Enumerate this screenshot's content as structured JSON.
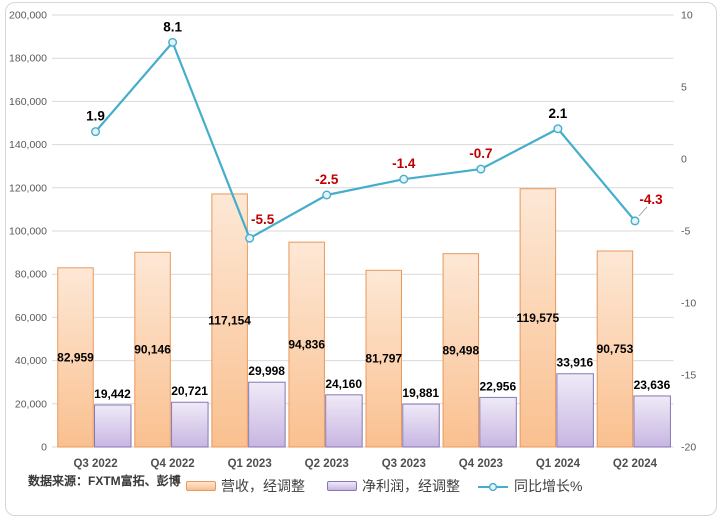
{
  "source_note": "数据来源：FXTM富拓、彭博",
  "chart_data": {
    "type": "combo",
    "title": "",
    "categories": [
      "Q3 2022",
      "Q4 2022",
      "Q1 2023",
      "Q2 2023",
      "Q3 2023",
      "Q4 2023",
      "Q1 2024",
      "Q2 2024"
    ],
    "series": [
      {
        "name": "营收，经调整",
        "type": "bar",
        "axis": "left",
        "values": [
          82959,
          90146,
          117154,
          94836,
          81797,
          89498,
          119575,
          90753
        ],
        "labels": [
          "82,959",
          "90,146",
          "117,154",
          "94,836",
          "81,797",
          "89,498",
          "119,575",
          "90,753"
        ]
      },
      {
        "name": "净利润，经调整",
        "type": "bar",
        "axis": "left",
        "values": [
          19442,
          20721,
          29998,
          24160,
          19881,
          22956,
          33916,
          23636
        ],
        "labels": [
          "19,442",
          "20,721",
          "29,998",
          "24,160",
          "19,881",
          "22,956",
          "33,916",
          "23,636"
        ]
      },
      {
        "name": "同比增长%",
        "type": "line",
        "axis": "right",
        "values": [
          1.9,
          8.1,
          -5.5,
          -2.5,
          -1.4,
          -0.7,
          2.1,
          -4.3
        ],
        "labels": [
          "1.9",
          "8.1",
          "-5.5",
          "-2.5",
          "-1.4",
          "-0.7",
          "2.1",
          "-4.3"
        ]
      }
    ],
    "left_axis": {
      "min": 0,
      "max": 200000,
      "step": 20000,
      "tick_labels": [
        "0",
        "20,000",
        "40,000",
        "60,000",
        "80,000",
        "100,000",
        "120,000",
        "140,000",
        "160,000",
        "180,000",
        "200,000"
      ]
    },
    "right_axis": {
      "min": -20,
      "max": 10,
      "step": 5,
      "tick_labels": [
        "-20",
        "-15",
        "-10",
        "-5",
        "0",
        "5",
        "10"
      ]
    },
    "grid": true,
    "legend_position": "bottom",
    "colors": {
      "revenue_fill_top": "#fde8d6",
      "revenue_fill_bottom": "#fac08f",
      "revenue_border": "#e8995c",
      "profit_fill_top": "#efeaf7",
      "profit_fill_bottom": "#c8b6e2",
      "profit_border": "#8677b5",
      "line": "#45aecb",
      "marker_fill": "#e3f3f9",
      "label_positive": "#000000",
      "label_negative": "#c00000",
      "gridline": "#d9d9d9",
      "axis_text": "#595959",
      "category_text": "#4f4f4f",
      "leader_line": "#a6a6a6"
    }
  }
}
